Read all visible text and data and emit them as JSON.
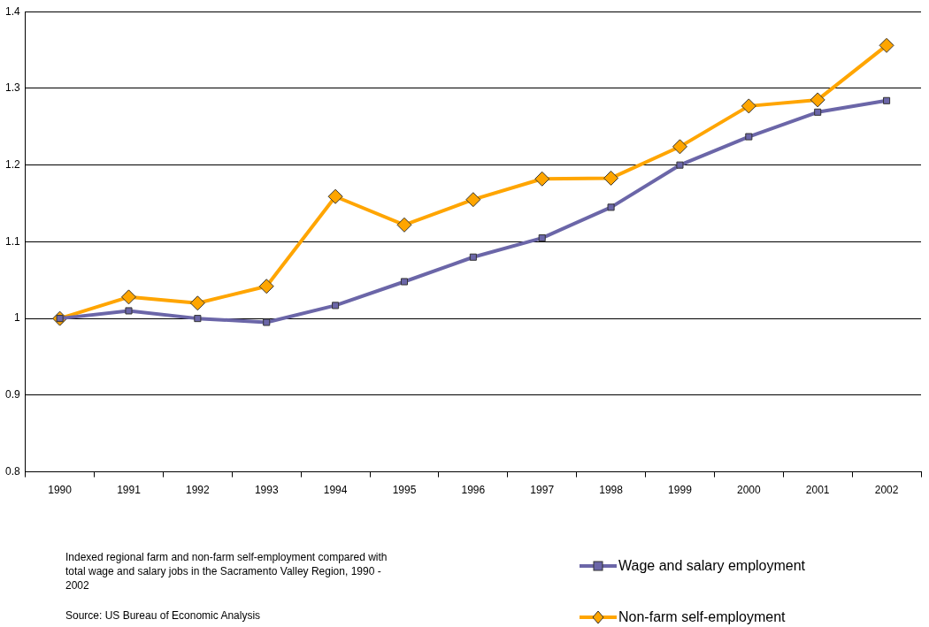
{
  "chart_data": {
    "type": "line",
    "categories": [
      "1990",
      "1991",
      "1992",
      "1993",
      "1994",
      "1995",
      "1996",
      "1997",
      "1998",
      "1999",
      "2000",
      "2001",
      "2002"
    ],
    "series": [
      {
        "name": "Wage and salary employment",
        "color": "#6b66a8",
        "marker": "square",
        "values": [
          1.0,
          1.01,
          1.0,
          0.995,
          1.017,
          1.048,
          1.08,
          1.105,
          1.145,
          1.2,
          1.237,
          1.269,
          1.284
        ]
      },
      {
        "name": "Non-farm self-employment",
        "color": "#ffa500",
        "marker": "diamond",
        "values": [
          1.0,
          1.028,
          1.02,
          1.042,
          1.159,
          1.122,
          1.155,
          1.182,
          1.183,
          1.224,
          1.277,
          1.285,
          1.356
        ]
      }
    ],
    "ylim": [
      0.8,
      1.4
    ],
    "yticks": [
      0.8,
      0.9,
      1,
      1.1,
      1.2,
      1.3,
      1.4
    ],
    "grid": "y",
    "legend": "bottom right",
    "line_style": "solid",
    "annotations": [
      "Indexed regional farm and non-farm self-employment compared with total wage and salary jobs in the Sacramento Valley Region, 1990 - 2002",
      "Source: US Bureau of Economic Analysis"
    ]
  }
}
